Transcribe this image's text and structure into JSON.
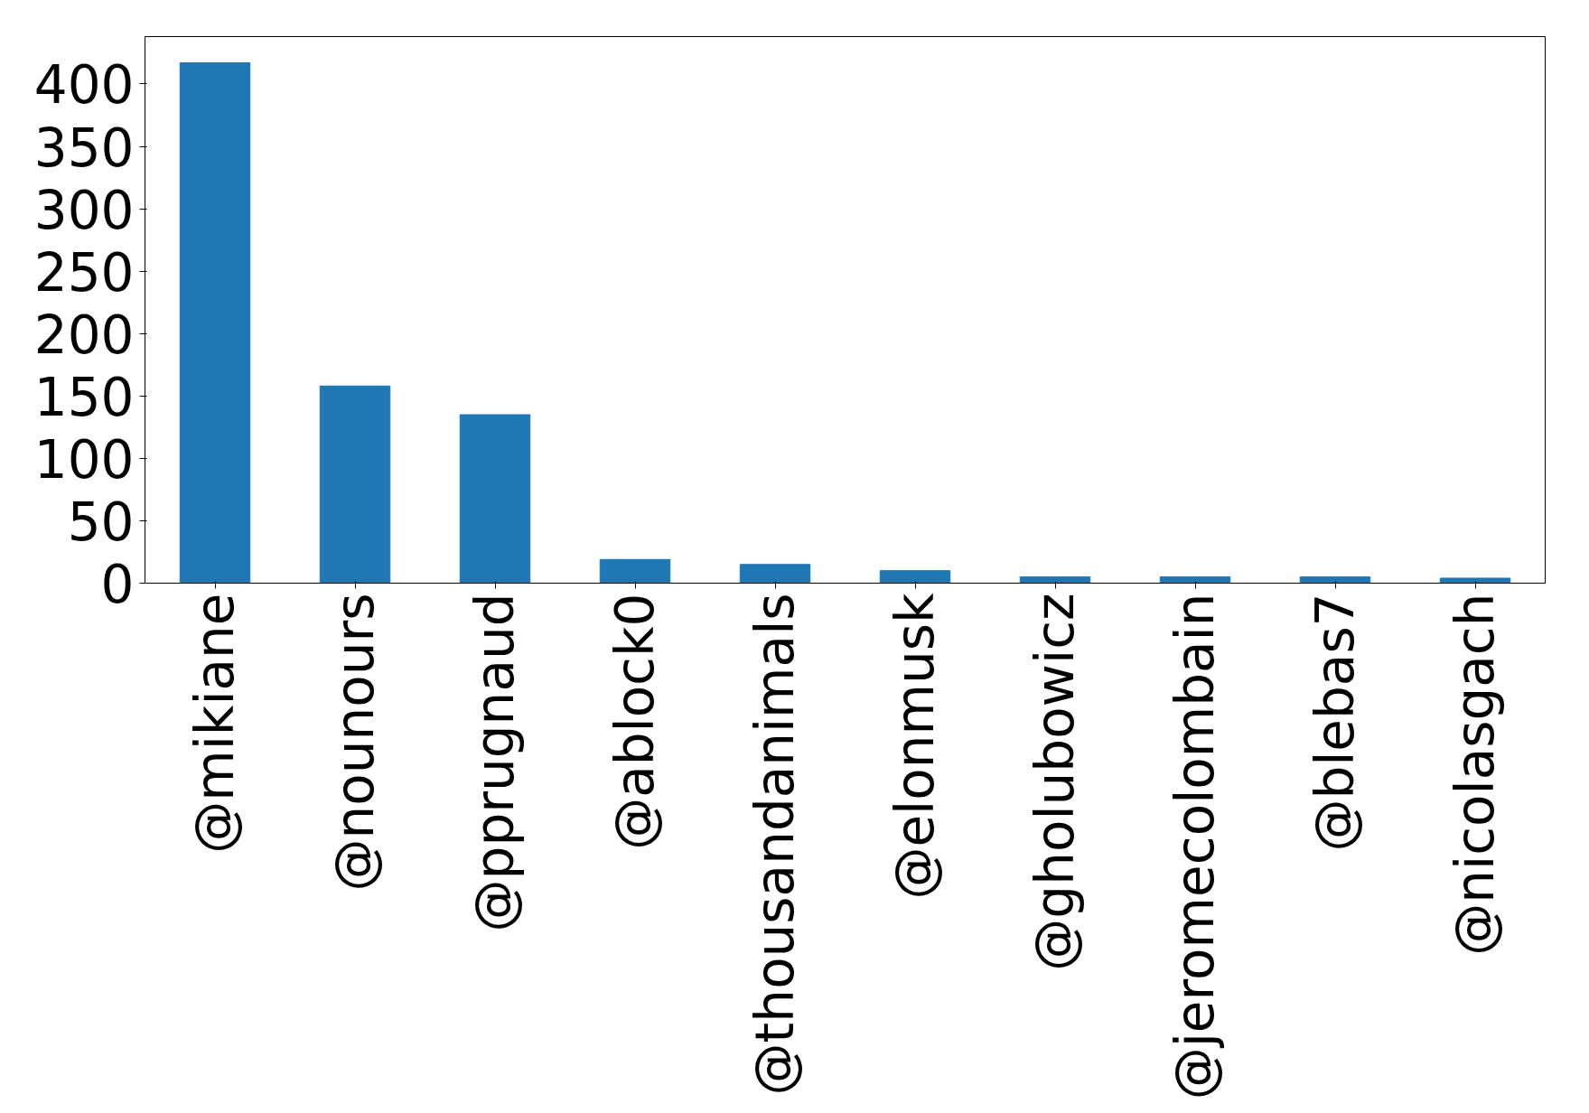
{
  "chart_data": {
    "type": "bar",
    "categories": [
      "@mikiane",
      "@nounours",
      "@pprugnaud",
      "@ablock0",
      "@thousandanimals",
      "@elonmusk",
      "@gholubowicz",
      "@jeromecolombain",
      "@blebas7",
      "@nicolasgach"
    ],
    "values": [
      417,
      158,
      135,
      19,
      15,
      10,
      5,
      5,
      5,
      4
    ],
    "color": "#1f77b4",
    "ylim": [
      0,
      438
    ],
    "yticks": [
      0,
      50,
      100,
      150,
      200,
      250,
      300,
      350,
      400
    ],
    "grid": false
  }
}
